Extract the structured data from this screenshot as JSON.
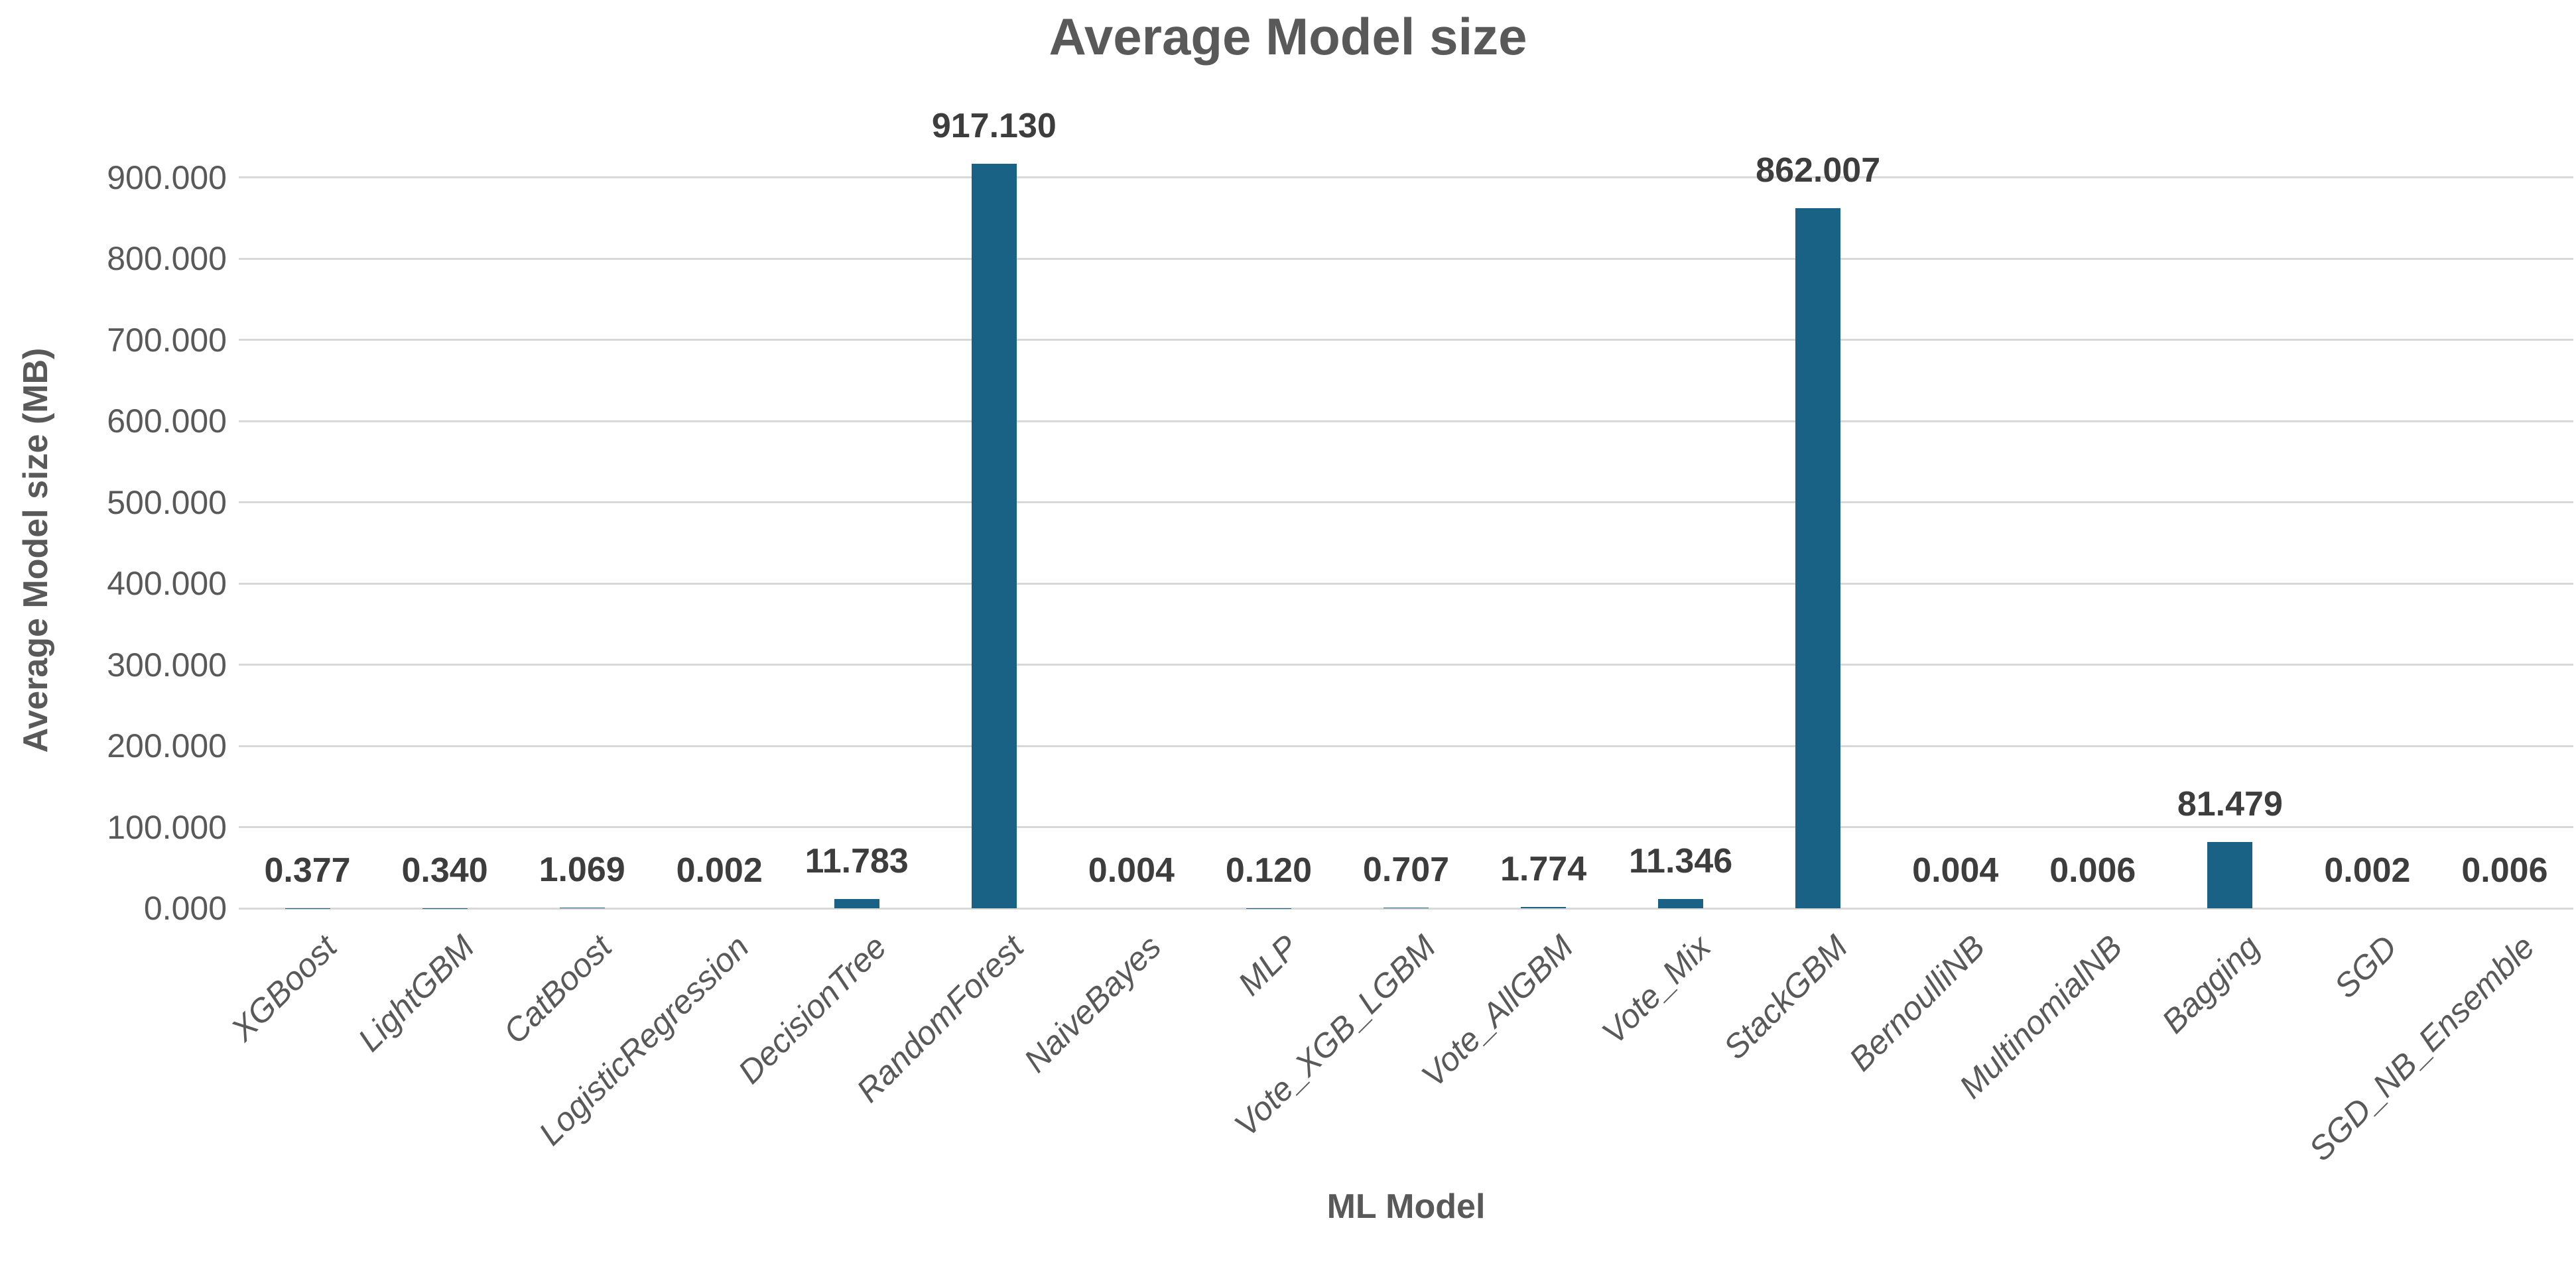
{
  "chart_data": {
    "type": "bar",
    "title": "Average Model size",
    "xlabel": "ML Model",
    "ylabel": "Average Model size (MB)",
    "categories": [
      "XGBoost",
      "LightGBM",
      "CatBoost",
      "LogisticRegression",
      "DecisionTree",
      "RandomForest",
      "NaiveBayes",
      "MLP",
      "Vote_XGB_LGBM",
      "Vote_AllGBM",
      "Vote_Mix",
      "StackGBM",
      "BernoulliNB",
      "MultinomialNB",
      "Bagging",
      "SGD",
      "SGD_NB_Ensemble"
    ],
    "values": [
      0.377,
      0.34,
      1.069,
      0.002,
      11.783,
      917.13,
      0.004,
      0.12,
      0.707,
      1.774,
      11.346,
      862.007,
      0.004,
      0.006,
      81.479,
      0.002,
      0.006
    ],
    "value_labels": [
      "0.377",
      "0.340",
      "1.069",
      "0.002",
      "11.783",
      "917.130",
      "0.004",
      "0.120",
      "0.707",
      "1.774",
      "11.346",
      "862.007",
      "0.004",
      "0.006",
      "81.479",
      "0.002",
      "0.006"
    ],
    "y_ticks": [
      {
        "value": 0,
        "label": "0.000"
      },
      {
        "value": 100,
        "label": "100.000"
      },
      {
        "value": 200,
        "label": "200.000"
      },
      {
        "value": 300,
        "label": "300.000"
      },
      {
        "value": 400,
        "label": "400.000"
      },
      {
        "value": 500,
        "label": "500.000"
      },
      {
        "value": 600,
        "label": "600.000"
      },
      {
        "value": 700,
        "label": "700.000"
      },
      {
        "value": 800,
        "label": "800.000"
      },
      {
        "value": 900,
        "label": "900.000"
      }
    ],
    "ylim": [
      0,
      930
    ],
    "grid": "horizontal",
    "legend": "none",
    "x_label_rotation_deg": 45,
    "colors": {
      "bar": "#1a6285",
      "grid": "#d8d8d8",
      "axis_text": "#595959",
      "data_label_text": "#3d3d3d",
      "background": "#ffffff"
    }
  }
}
